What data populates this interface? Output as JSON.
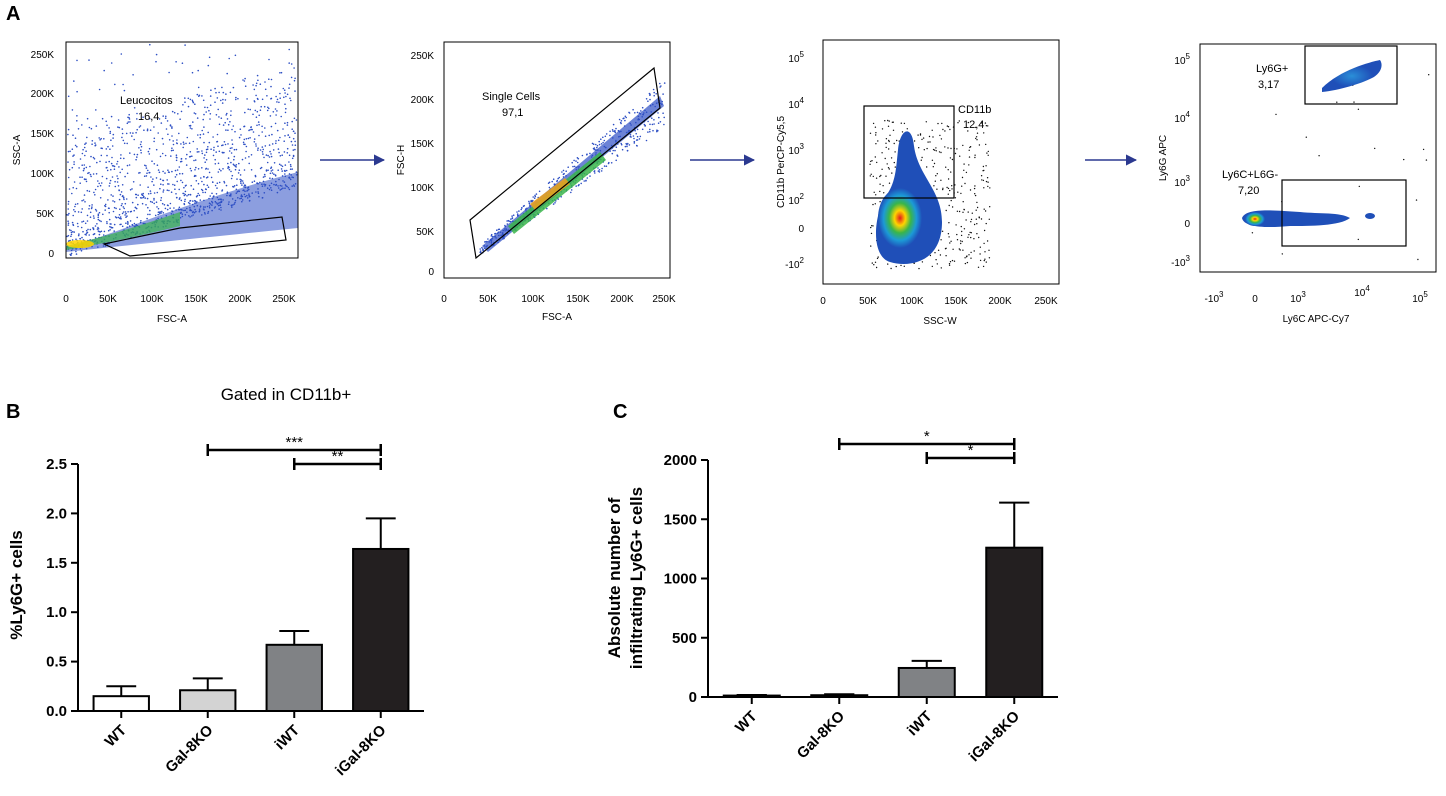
{
  "panels": {
    "a": "A",
    "b": "B",
    "c": "C"
  },
  "flow_plots": [
    {
      "id": "leucocitos",
      "xlabel": "FSC-A",
      "ylabel": "SSC-A",
      "x_ticks": [
        "0",
        "50K",
        "100K",
        "150K",
        "200K",
        "250K"
      ],
      "y_ticks": [
        "0",
        "50K",
        "100K",
        "150K",
        "200K",
        "250K"
      ],
      "gate_name": "Leucocitos",
      "gate_value": "16,4"
    },
    {
      "id": "single-cells",
      "xlabel": "FSC-A",
      "ylabel": "FSC-H",
      "x_ticks": [
        "0",
        "50K",
        "100K",
        "150K",
        "200K",
        "250K"
      ],
      "y_ticks": [
        "0",
        "50K",
        "100K",
        "150K",
        "200K",
        "250K"
      ],
      "gate_name": "Single Cells",
      "gate_value": "97,1"
    },
    {
      "id": "cd11b",
      "xlabel": "SSC-W",
      "ylabel": "CD11b PerCP-Cy5,5",
      "x_ticks": [
        "0",
        "50K",
        "100K",
        "150K",
        "200K",
        "250K"
      ],
      "y_ticks": [
        "-10",
        "0",
        "10",
        "10",
        "10",
        "10"
      ],
      "y_exponents": [
        "2",
        "",
        "2",
        "3",
        "4",
        "5"
      ],
      "gate_name": "CD11b",
      "gate_value": "12,4"
    },
    {
      "id": "ly6g",
      "xlabel": "Ly6C APC-Cy7",
      "ylabel": "Ly6G APC",
      "x_ticks": [
        "-10",
        "0",
        "10",
        "10",
        "10"
      ],
      "x_exponents": [
        "3",
        "",
        "3",
        "4",
        "5"
      ],
      "y_ticks": [
        "-10",
        "0",
        "10",
        "10",
        "10"
      ],
      "y_exponents": [
        "3",
        "",
        "3",
        "4",
        "5"
      ],
      "gate1_name": "Ly6G+",
      "gate1_value": "3,17",
      "gate2_name": "Ly6C+L6G-",
      "gate2_value": "7,20"
    }
  ],
  "colors": {
    "arrow": "#2b3990",
    "dot_blue": "#2d4fc4",
    "wt": "#ffffff",
    "gal8ko": "#d3d3d3",
    "iwt": "#808285",
    "igal8ko": "#231f20"
  },
  "chart_data": [
    {
      "type": "bar",
      "title": "Gated in CD11b+",
      "xlabel": "",
      "ylabel": "%Ly6G+ cells",
      "categories": [
        "WT",
        "Gal-8KO",
        "iWT",
        "iGal-8KO"
      ],
      "values": [
        0.15,
        0.21,
        0.67,
        1.64
      ],
      "errors": [
        0.1,
        0.12,
        0.14,
        0.31
      ],
      "ylim": [
        0,
        2.5
      ],
      "yticks": [
        "0.0",
        "0.5",
        "1.0",
        "1.5",
        "2.0",
        "2.5"
      ],
      "significance": [
        {
          "from": 1,
          "to": 3,
          "label": "***"
        },
        {
          "from": 2,
          "to": 3,
          "label": "**"
        }
      ]
    },
    {
      "type": "bar",
      "title": "",
      "xlabel": "",
      "ylabel_line1": "Absolute number of",
      "ylabel_line2": "infiltrating Ly6G+ cells",
      "categories": [
        "WT",
        "Gal-8KO",
        "iWT",
        "iGal-8KO"
      ],
      "values": [
        12,
        15,
        245,
        1260
      ],
      "errors": [
        5,
        8,
        60,
        380
      ],
      "ylim": [
        0,
        2000
      ],
      "yticks": [
        "0",
        "500",
        "1000",
        "1500",
        "2000"
      ],
      "significance": [
        {
          "from": 1,
          "to": 3,
          "label": "*"
        },
        {
          "from": 2,
          "to": 3,
          "label": "*"
        }
      ]
    }
  ]
}
